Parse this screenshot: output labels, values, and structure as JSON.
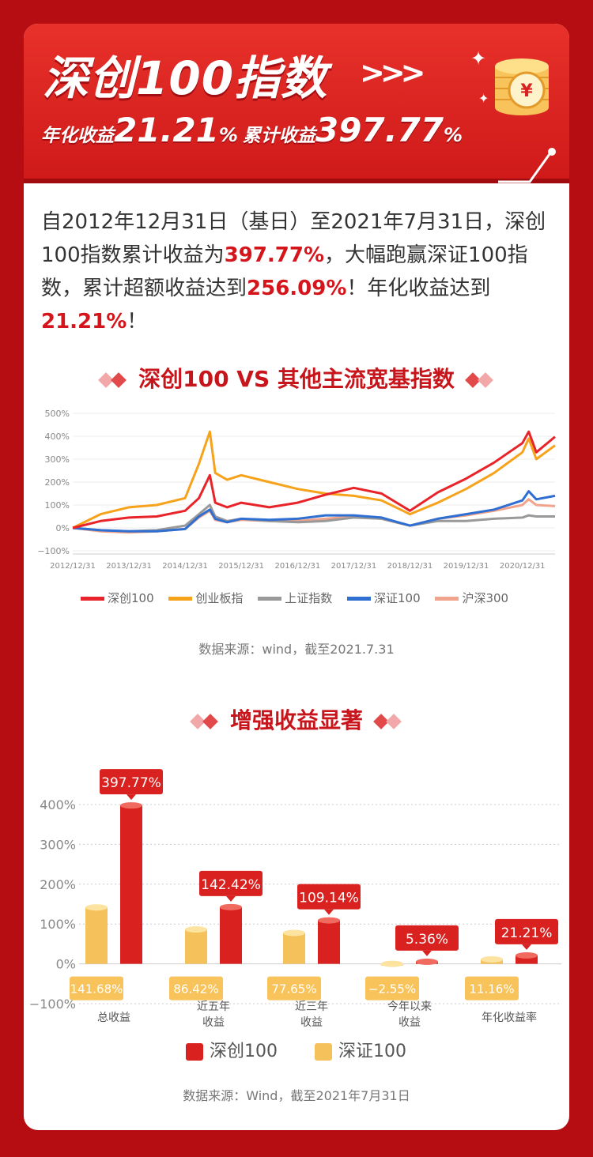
{
  "banner": {
    "title": "深创100指数",
    "annual_label": "年化收益",
    "annual_value": "21.21",
    "cum_label": "累计收益",
    "cum_value": "397.77",
    "pct": "%"
  },
  "intro": {
    "p1": "自2012年12月31日（基日）至2021年7月31日，深创100指数累计收益为",
    "v1": "397.77%",
    "p2": "，大幅跑赢深证100指数，累计超额收益达到",
    "v2": "256.09%",
    "p3": "！年化收益达到",
    "v3": "21.21%",
    "p4": "！"
  },
  "section1": {
    "title": "深创100 VS 其他主流宽基指数",
    "source": "数据来源：wind，截至2021.7.31"
  },
  "section2": {
    "title": "增强收益显著",
    "source": "数据来源：Wind，截至2021年7月31日"
  },
  "colors": {
    "red": "#e8242a",
    "orange": "#f7a21b",
    "gray": "#999999",
    "blue": "#2f6fd1",
    "pink": "#f2a38c",
    "accent": "#c8151b"
  },
  "chart_data": [
    {
      "type": "line",
      "title": "深创100 VS 其他主流宽基指数",
      "x": [
        "2012/12/31",
        "2013/06/30",
        "2013/12/31",
        "2014/06/30",
        "2014/12/31",
        "2015/03/31",
        "2015/06/10",
        "2015/07/15",
        "2015/09/30",
        "2015/12/31",
        "2016/06/30",
        "2016/12/31",
        "2017/06/30",
        "2017/12/31",
        "2018/06/30",
        "2018/12/31",
        "2019/06/30",
        "2019/12/31",
        "2020/06/30",
        "2020/12/31",
        "2021/02/10",
        "2021/03/31",
        "2021/07/31"
      ],
      "xticks": [
        "2012/12/31",
        "2013/12/31",
        "2014/12/31",
        "2015/12/31",
        "2016/12/31",
        "2017/12/31",
        "2018/12/31",
        "2019/12/31",
        "2020/12/31"
      ],
      "yticks": [
        "500%",
        "400%",
        "300%",
        "200%",
        "100%",
        "0%",
        "−100%"
      ],
      "ylim": [
        -100,
        500
      ],
      "series": [
        {
          "name": "深创100",
          "color": "#e8242a",
          "values": [
            0,
            30,
            45,
            50,
            75,
            130,
            230,
            110,
            90,
            110,
            90,
            110,
            145,
            175,
            150,
            75,
            155,
            215,
            285,
            370,
            420,
            330,
            398
          ]
        },
        {
          "name": "创业板指",
          "color": "#f7a21b",
          "values": [
            0,
            60,
            90,
            100,
            130,
            280,
            420,
            240,
            210,
            230,
            200,
            170,
            150,
            140,
            120,
            60,
            110,
            170,
            240,
            330,
            390,
            300,
            360
          ]
        },
        {
          "name": "上证指数",
          "color": "#999999",
          "values": [
            0,
            -10,
            -15,
            -10,
            10,
            60,
            100,
            50,
            30,
            40,
            30,
            25,
            30,
            45,
            40,
            10,
            30,
            30,
            40,
            45,
            55,
            50,
            50
          ]
        },
        {
          "name": "深证100",
          "color": "#2f6fd1",
          "values": [
            0,
            -10,
            -15,
            -15,
            -5,
            50,
            80,
            40,
            25,
            40,
            35,
            40,
            55,
            55,
            45,
            10,
            40,
            60,
            80,
            120,
            160,
            125,
            140
          ]
        },
        {
          "name": "沪深300",
          "color": "#f2a38c",
          "values": [
            0,
            -15,
            -20,
            -15,
            -5,
            45,
            75,
            35,
            25,
            35,
            30,
            30,
            40,
            50,
            40,
            10,
            40,
            55,
            75,
            100,
            125,
            100,
            95
          ]
        }
      ]
    },
    {
      "type": "bar",
      "title": "增强收益显著",
      "categories": [
        "总收益",
        "近五年\n收益",
        "近三年\n收益",
        "今年以来\n收益",
        "年化收益率"
      ],
      "yticks": [
        "400%",
        "300%",
        "200%",
        "100%",
        "0%",
        "−100%"
      ],
      "ylim": [
        -100,
        400
      ],
      "series": [
        {
          "name": "深证100",
          "color": "#f5c15a",
          "values": [
            141.68,
            86.42,
            77.65,
            -2.55,
            11.16
          ],
          "labels": [
            "141.68%",
            "86.42%",
            "77.65%",
            "−2.55%",
            "11.16%"
          ]
        },
        {
          "name": "深创100",
          "color": "#d9211f",
          "values": [
            397.77,
            142.42,
            109.14,
            5.36,
            21.21
          ],
          "labels": [
            "397.77%",
            "142.42%",
            "109.14%",
            "5.36%",
            "21.21%"
          ]
        }
      ]
    }
  ]
}
